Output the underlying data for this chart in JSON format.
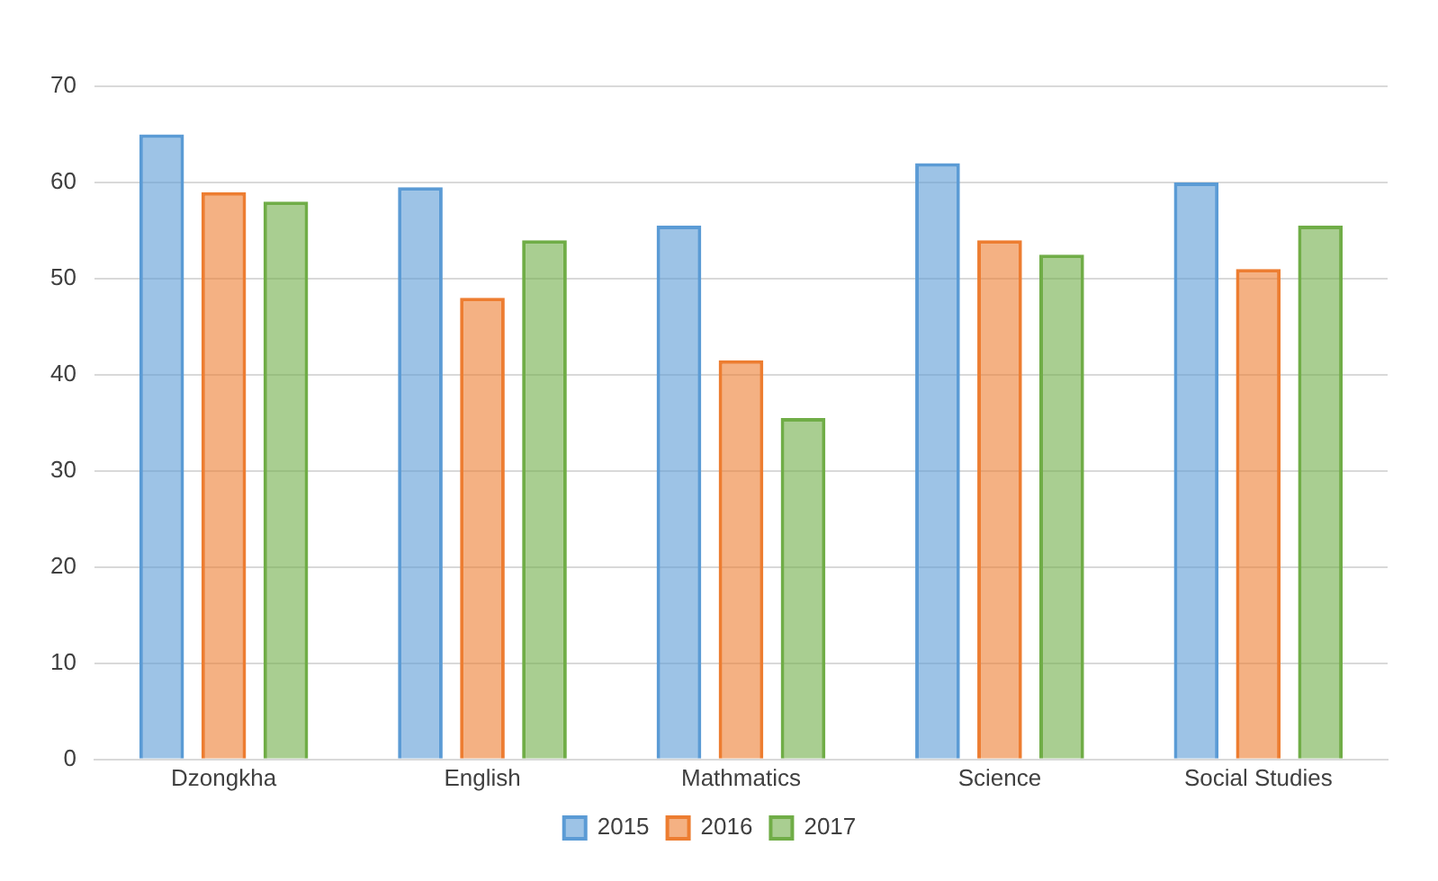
{
  "chart_data": {
    "type": "bar",
    "categories": [
      "Dzongkha",
      "English",
      "Mathmatics",
      "Science",
      "Social Studies"
    ],
    "series": [
      {
        "name": "2015",
        "color": "#5b9bd5",
        "values": [
          65,
          59.5,
          55.5,
          62,
          60
        ]
      },
      {
        "name": "2016",
        "color": "#ed7d31",
        "values": [
          59,
          48,
          41.5,
          54,
          51
        ]
      },
      {
        "name": "2017",
        "color": "#70ad47",
        "values": [
          58,
          54,
          35.5,
          52.5,
          55.5
        ]
      }
    ],
    "ylim": [
      0,
      70
    ],
    "yticks": [
      0,
      10,
      20,
      30,
      40,
      50,
      60,
      70
    ],
    "grid": "y",
    "legend": "bottom"
  }
}
